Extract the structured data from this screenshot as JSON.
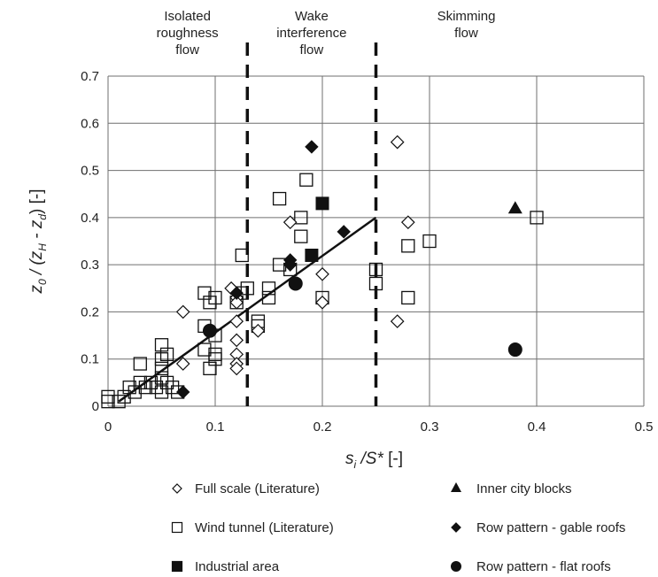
{
  "chart_data": {
    "type": "scatter",
    "xlabel": "s_i / S* [-]",
    "ylabel": "z0 / (zH - zd) [-]",
    "xlim": [
      0,
      0.5
    ],
    "ylim": [
      0,
      0.7
    ],
    "x_ticks": [
      0,
      0.1,
      0.2,
      0.3,
      0.4,
      0.5
    ],
    "y_ticks": [
      0,
      0.1,
      0.2,
      0.3,
      0.4,
      0.5,
      0.6,
      0.7
    ],
    "grid": true,
    "legend_position": "bottom",
    "regions": [
      {
        "lines": [
          "Isolated",
          "roughness",
          "flow"
        ]
      },
      {
        "lines": [
          "Wake",
          "interference",
          "flow"
        ]
      },
      {
        "lines": [
          "Skimming",
          "flow"
        ]
      }
    ],
    "region_boundaries": [
      0.13,
      0.25
    ],
    "fit_line": {
      "x": [
        0.01,
        0.25
      ],
      "y": [
        0.01,
        0.4
      ]
    },
    "series": [
      {
        "name": "Full scale (Literature)",
        "marker": "diamond-open",
        "points": [
          [
            0.07,
            0.2
          ],
          [
            0.07,
            0.09
          ],
          [
            0.115,
            0.25
          ],
          [
            0.12,
            0.23
          ],
          [
            0.12,
            0.22
          ],
          [
            0.12,
            0.18
          ],
          [
            0.12,
            0.14
          ],
          [
            0.12,
            0.11
          ],
          [
            0.12,
            0.09
          ],
          [
            0.12,
            0.08
          ],
          [
            0.14,
            0.16
          ],
          [
            0.17,
            0.39
          ],
          [
            0.2,
            0.28
          ],
          [
            0.2,
            0.22
          ],
          [
            0.27,
            0.56
          ],
          [
            0.28,
            0.39
          ],
          [
            0.27,
            0.18
          ]
        ]
      },
      {
        "name": "Wind tunnel (Literature)",
        "marker": "square-open",
        "points": [
          [
            0,
            0.02
          ],
          [
            0,
            0.01
          ],
          [
            0.01,
            0.01
          ],
          [
            0.015,
            0.02
          ],
          [
            0.02,
            0.04
          ],
          [
            0.025,
            0.03
          ],
          [
            0.03,
            0.05
          ],
          [
            0.035,
            0.04
          ],
          [
            0.03,
            0.09
          ],
          [
            0.04,
            0.05
          ],
          [
            0.045,
            0.04
          ],
          [
            0.05,
            0.06
          ],
          [
            0.05,
            0.03
          ],
          [
            0.055,
            0.05
          ],
          [
            0.05,
            0.08
          ],
          [
            0.05,
            0.1
          ],
          [
            0.05,
            0.13
          ],
          [
            0.055,
            0.11
          ],
          [
            0.06,
            0.04
          ],
          [
            0.065,
            0.03
          ],
          [
            0.09,
            0.24
          ],
          [
            0.09,
            0.17
          ],
          [
            0.09,
            0.12
          ],
          [
            0.095,
            0.08
          ],
          [
            0.095,
            0.22
          ],
          [
            0.1,
            0.23
          ],
          [
            0.1,
            0.15
          ],
          [
            0.1,
            0.11
          ],
          [
            0.1,
            0.1
          ],
          [
            0.12,
            0.22
          ],
          [
            0.125,
            0.24
          ],
          [
            0.125,
            0.32
          ],
          [
            0.13,
            0.25
          ],
          [
            0.14,
            0.18
          ],
          [
            0.14,
            0.17
          ],
          [
            0.15,
            0.23
          ],
          [
            0.15,
            0.25
          ],
          [
            0.16,
            0.44
          ],
          [
            0.16,
            0.3
          ],
          [
            0.17,
            0.29
          ],
          [
            0.18,
            0.4
          ],
          [
            0.18,
            0.36
          ],
          [
            0.185,
            0.48
          ],
          [
            0.2,
            0.23
          ],
          [
            0.25,
            0.29
          ],
          [
            0.25,
            0.26
          ],
          [
            0.28,
            0.34
          ],
          [
            0.28,
            0.23
          ],
          [
            0.3,
            0.35
          ],
          [
            0.4,
            0.4
          ]
        ]
      },
      {
        "name": "Industrial area",
        "marker": "square-filled",
        "points": [
          [
            0.19,
            0.32
          ],
          [
            0.2,
            0.43
          ]
        ]
      },
      {
        "name": "Inner city blocks",
        "marker": "triangle-filled",
        "points": [
          [
            0.38,
            0.42
          ]
        ]
      },
      {
        "name": "Row pattern - gable roofs",
        "marker": "diamond-filled",
        "points": [
          [
            0.07,
            0.03
          ],
          [
            0.12,
            0.24
          ],
          [
            0.17,
            0.31
          ],
          [
            0.17,
            0.3
          ],
          [
            0.19,
            0.55
          ],
          [
            0.22,
            0.37
          ]
        ]
      },
      {
        "name": "Row pattern - flat roofs",
        "marker": "circle-filled",
        "points": [
          [
            0.095,
            0.16
          ],
          [
            0.175,
            0.26
          ],
          [
            0.38,
            0.12
          ]
        ]
      }
    ]
  }
}
